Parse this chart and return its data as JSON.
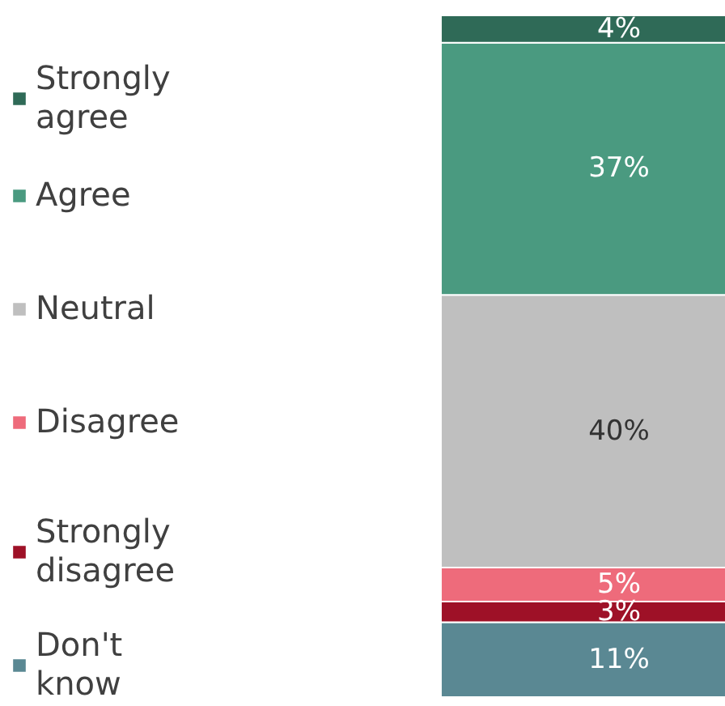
{
  "chart_data": {
    "type": "bar",
    "stacked": true,
    "categories": [
      null
    ],
    "legend": "left",
    "series": [
      {
        "name": "Don't know",
        "color": "#5a8893",
        "values": [
          11
        ],
        "value_labels": [
          "11%"
        ]
      },
      {
        "name": "Strongly disagree",
        "color": "#9e1127",
        "values": [
          3
        ],
        "value_labels": [
          "3%"
        ]
      },
      {
        "name": "Disagree",
        "color": "#ee6b7b",
        "values": [
          5
        ],
        "value_labels": [
          "5%"
        ]
      },
      {
        "name": "Neutral",
        "color": "#bfbfbf",
        "values": [
          40
        ],
        "value_labels": [
          "40%"
        ]
      },
      {
        "name": "Agree",
        "color": "#4a9a80",
        "values": [
          37
        ],
        "value_labels": [
          "37%"
        ]
      },
      {
        "name": "Strongly agree",
        "color": "#2f6a57",
        "values": [
          4
        ],
        "value_labels": [
          "4%"
        ]
      }
    ]
  }
}
